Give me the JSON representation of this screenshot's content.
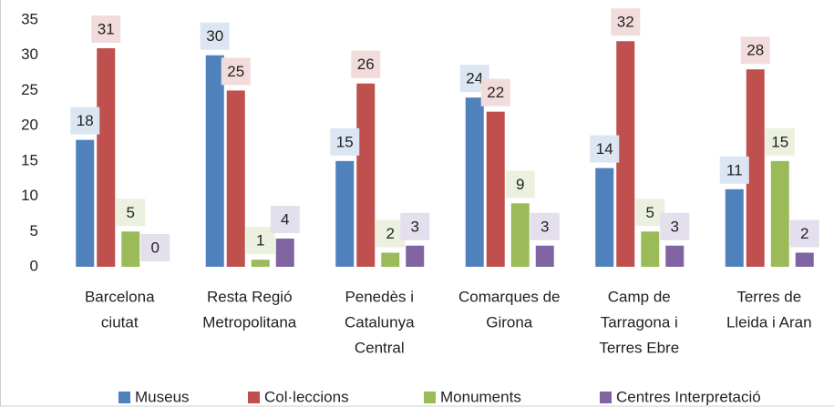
{
  "chart_data": {
    "type": "bar",
    "categories": [
      [
        "Barcelona",
        "ciutat"
      ],
      [
        "Resta Regió",
        "Metropolitana"
      ],
      [
        "Penedès i",
        "Catalunya",
        "Central"
      ],
      [
        "Comarques de",
        "Girona"
      ],
      [
        "Camp de",
        "Tarragona i",
        "Terres Ebre"
      ],
      [
        "Terres de",
        "Lleida i Aran"
      ]
    ],
    "series": [
      {
        "name": "Museus",
        "color": "#4f81bd",
        "label_bg": "#dce6f2",
        "values": [
          18,
          30,
          15,
          24,
          14,
          11
        ]
      },
      {
        "name": "Col·leccions",
        "color": "#c0504d",
        "label_bg": "#f2dcdb",
        "values": [
          31,
          25,
          26,
          22,
          32,
          28
        ]
      },
      {
        "name": "Monuments",
        "color": "#9bbb59",
        "label_bg": "#ebf1de",
        "values": [
          5,
          1,
          2,
          9,
          5,
          15
        ]
      },
      {
        "name": "Centres Interpretació",
        "color": "#8064a2",
        "label_bg": "#e4dfec",
        "values": [
          0,
          4,
          3,
          3,
          3,
          2
        ]
      }
    ],
    "ylim": [
      0,
      35
    ],
    "yticks": [
      0,
      5,
      10,
      15,
      20,
      25,
      30,
      35
    ],
    "grid": false,
    "legend": "bottom"
  }
}
